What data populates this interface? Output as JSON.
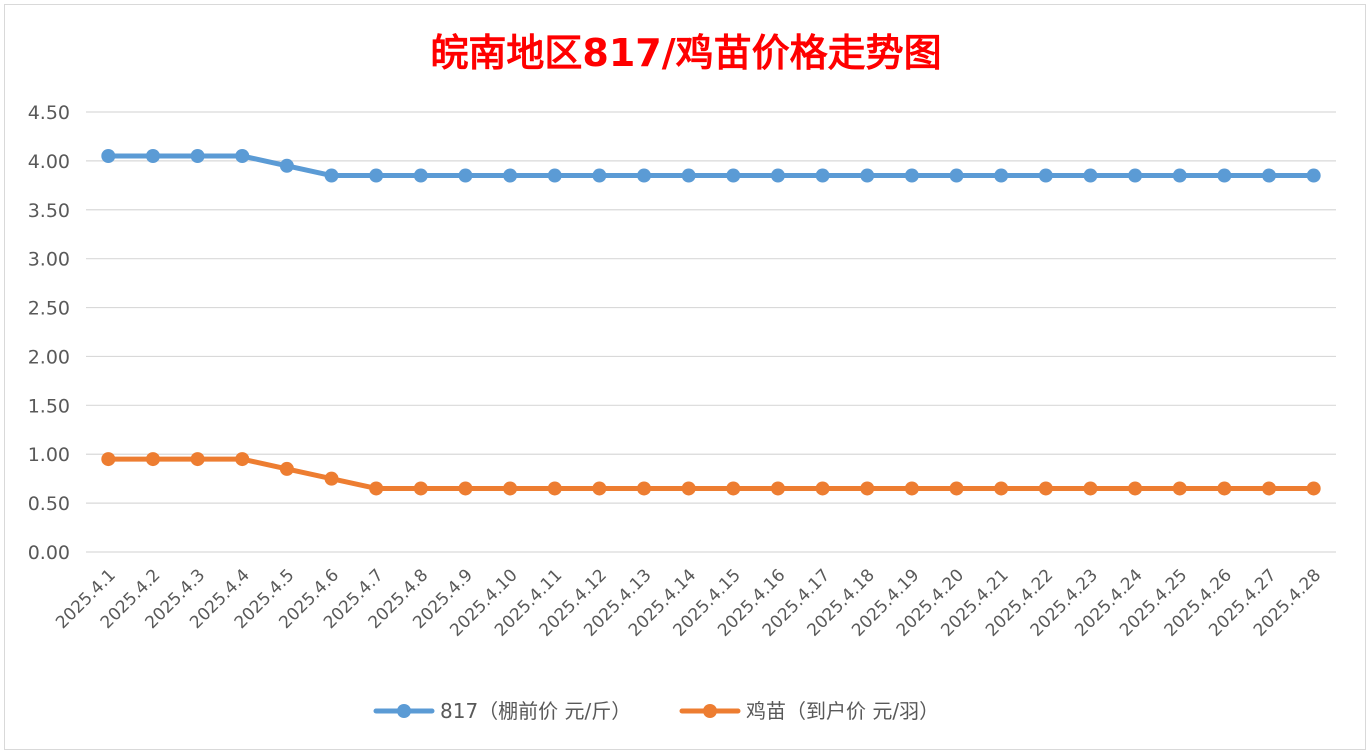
{
  "chart_data": {
    "type": "line",
    "title": "皖南地区817/鸡苗价格走势图",
    "title_color": "#ff0000",
    "categories": [
      "2025.4.1",
      "2025.4.2",
      "2025.4.3",
      "2025.4.4",
      "2025.4.5",
      "2025.4.6",
      "2025.4.7",
      "2025.4.8",
      "2025.4.9",
      "2025.4.10",
      "2025.4.11",
      "2025.4.12",
      "2025.4.13",
      "2025.4.14",
      "2025.4.15",
      "2025.4.16",
      "2025.4.17",
      "2025.4.18",
      "2025.4.19",
      "2025.4.20",
      "2025.4.21",
      "2025.4.22",
      "2025.4.23",
      "2025.4.24",
      "2025.4.25",
      "2025.4.26",
      "2025.4.27",
      "2025.4.28"
    ],
    "series": [
      {
        "name": "817（棚前价 元/斤）",
        "color": "#5b9bd5",
        "values": [
          4.05,
          4.05,
          4.05,
          4.05,
          3.95,
          3.85,
          3.85,
          3.85,
          3.85,
          3.85,
          3.85,
          3.85,
          3.85,
          3.85,
          3.85,
          3.85,
          3.85,
          3.85,
          3.85,
          3.85,
          3.85,
          3.85,
          3.85,
          3.85,
          3.85,
          3.85,
          3.85,
          3.85
        ]
      },
      {
        "name": "鸡苗（到户价 元/羽）",
        "color": "#ed7d31",
        "values": [
          0.95,
          0.95,
          0.95,
          0.95,
          0.85,
          0.75,
          0.65,
          0.65,
          0.65,
          0.65,
          0.65,
          0.65,
          0.65,
          0.65,
          0.65,
          0.65,
          0.65,
          0.65,
          0.65,
          0.65,
          0.65,
          0.65,
          0.65,
          0.65,
          0.65,
          0.65,
          0.65,
          0.65
        ]
      }
    ],
    "ylim": [
      0,
      4.5
    ],
    "yticks": [
      "0.00",
      "0.50",
      "1.00",
      "1.50",
      "2.00",
      "2.50",
      "3.00",
      "3.50",
      "4.00",
      "4.50"
    ],
    "grid": true,
    "legend_position": "bottom"
  }
}
